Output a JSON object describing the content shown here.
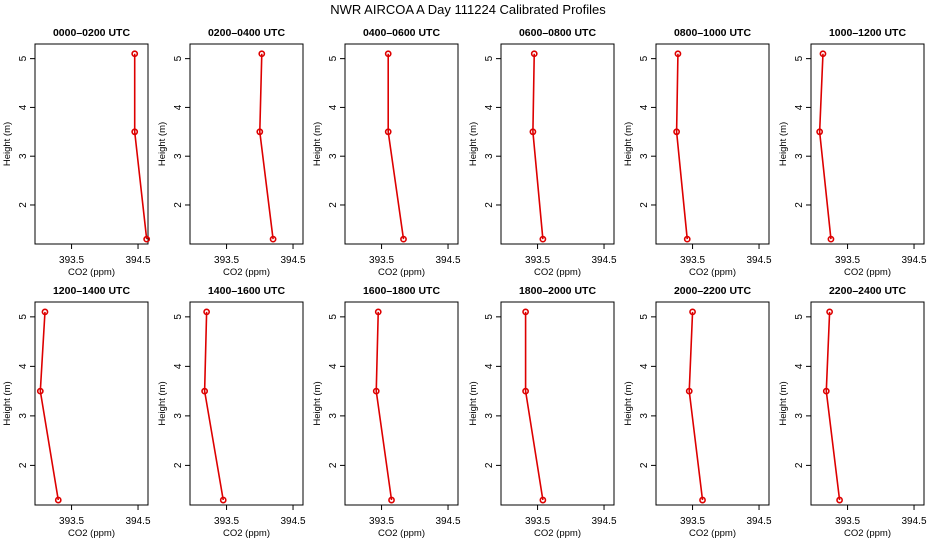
{
  "figure": {
    "title": "NWR AIRCOA A  Day 111224  Calibrated Profiles"
  },
  "chart_data": [
    {
      "type": "line",
      "title": "0000–0200 UTC",
      "xlabel": "CO2 (ppm)",
      "ylabel": "Height (m)",
      "xlim": [
        392.95,
        394.65
      ],
      "ylim": [
        1.2,
        5.3
      ],
      "xticks": [
        393.5,
        394.5
      ],
      "xtick_labels": [
        "393.5",
        "394.5"
      ],
      "yticks": [
        2,
        3,
        4,
        5
      ],
      "ytick_labels": [
        "2",
        "3",
        "4",
        "5"
      ],
      "series": [
        {
          "x": [
            394.45,
            394.45,
            394.63
          ],
          "y": [
            5.1,
            3.5,
            1.3
          ]
        }
      ]
    },
    {
      "type": "line",
      "title": "0200–0400 UTC",
      "xlabel": "CO2 (ppm)",
      "ylabel": "Height (m)",
      "xlim": [
        392.95,
        394.65
      ],
      "ylim": [
        1.2,
        5.3
      ],
      "xticks": [
        393.5,
        394.5
      ],
      "xtick_labels": [
        "393.5",
        "394.5"
      ],
      "yticks": [
        2,
        3,
        4,
        5
      ],
      "ytick_labels": [
        "2",
        "3",
        "4",
        "5"
      ],
      "series": [
        {
          "x": [
            394.03,
            394.0,
            394.2
          ],
          "y": [
            5.1,
            3.5,
            1.3
          ]
        }
      ]
    },
    {
      "type": "line",
      "title": "0400–0600 UTC",
      "xlabel": "CO2 (ppm)",
      "ylabel": "Height (m)",
      "xlim": [
        392.95,
        394.65
      ],
      "ylim": [
        1.2,
        5.3
      ],
      "xticks": [
        393.5,
        394.5
      ],
      "xtick_labels": [
        "393.5",
        "394.5"
      ],
      "yticks": [
        2,
        3,
        4,
        5
      ],
      "ytick_labels": [
        "2",
        "3",
        "4",
        "5"
      ],
      "series": [
        {
          "x": [
            393.6,
            393.6,
            393.83
          ],
          "y": [
            5.1,
            3.5,
            1.3
          ]
        }
      ]
    },
    {
      "type": "line",
      "title": "0600–0800 UTC",
      "xlabel": "CO2 (ppm)",
      "ylabel": "Height (m)",
      "xlim": [
        392.95,
        394.65
      ],
      "ylim": [
        1.2,
        5.3
      ],
      "xticks": [
        393.5,
        394.5
      ],
      "xtick_labels": [
        "393.5",
        "394.5"
      ],
      "yticks": [
        2,
        3,
        4,
        5
      ],
      "ytick_labels": [
        "2",
        "3",
        "4",
        "5"
      ],
      "series": [
        {
          "x": [
            393.45,
            393.43,
            393.58
          ],
          "y": [
            5.1,
            3.5,
            1.3
          ]
        }
      ]
    },
    {
      "type": "line",
      "title": "0800–1000 UTC",
      "xlabel": "CO2 (ppm)",
      "ylabel": "Height (m)",
      "xlim": [
        392.95,
        394.65
      ],
      "ylim": [
        1.2,
        5.3
      ],
      "xticks": [
        393.5,
        394.5
      ],
      "xtick_labels": [
        "393.5",
        "394.5"
      ],
      "yticks": [
        2,
        3,
        4,
        5
      ],
      "ytick_labels": [
        "2",
        "3",
        "4",
        "5"
      ],
      "series": [
        {
          "x": [
            393.28,
            393.26,
            393.42
          ],
          "y": [
            5.1,
            3.5,
            1.3
          ]
        }
      ]
    },
    {
      "type": "line",
      "title": "1000–1200 UTC",
      "xlabel": "CO2 (ppm)",
      "ylabel": "Height (m)",
      "xlim": [
        392.95,
        394.65
      ],
      "ylim": [
        1.2,
        5.3
      ],
      "xticks": [
        393.5,
        394.5
      ],
      "xtick_labels": [
        "393.5",
        "394.5"
      ],
      "yticks": [
        2,
        3,
        4,
        5
      ],
      "ytick_labels": [
        "2",
        "3",
        "4",
        "5"
      ],
      "series": [
        {
          "x": [
            393.13,
            393.08,
            393.25
          ],
          "y": [
            5.1,
            3.5,
            1.3
          ]
        }
      ]
    },
    {
      "type": "line",
      "title": "1200–1400 UTC",
      "xlabel": "CO2 (ppm)",
      "ylabel": "Height (m)",
      "xlim": [
        392.95,
        394.65
      ],
      "ylim": [
        1.2,
        5.3
      ],
      "xticks": [
        393.5,
        394.5
      ],
      "xtick_labels": [
        "393.5",
        "394.5"
      ],
      "yticks": [
        2,
        3,
        4,
        5
      ],
      "ytick_labels": [
        "2",
        "3",
        "4",
        "5"
      ],
      "series": [
        {
          "x": [
            393.1,
            393.03,
            393.3
          ],
          "y": [
            5.1,
            3.5,
            1.3
          ]
        }
      ]
    },
    {
      "type": "line",
      "title": "1400–1600 UTC",
      "xlabel": "CO2 (ppm)",
      "ylabel": "Height (m)",
      "xlim": [
        392.95,
        394.65
      ],
      "ylim": [
        1.2,
        5.3
      ],
      "xticks": [
        393.5,
        394.5
      ],
      "xtick_labels": [
        "393.5",
        "394.5"
      ],
      "yticks": [
        2,
        3,
        4,
        5
      ],
      "ytick_labels": [
        "2",
        "3",
        "4",
        "5"
      ],
      "series": [
        {
          "x": [
            393.2,
            393.17,
            393.45
          ],
          "y": [
            5.1,
            3.5,
            1.3
          ]
        }
      ]
    },
    {
      "type": "line",
      "title": "1600–1800 UTC",
      "xlabel": "CO2 (ppm)",
      "ylabel": "Height (m)",
      "xlim": [
        392.95,
        394.65
      ],
      "ylim": [
        1.2,
        5.3
      ],
      "xticks": [
        393.5,
        394.5
      ],
      "xtick_labels": [
        "393.5",
        "394.5"
      ],
      "yticks": [
        2,
        3,
        4,
        5
      ],
      "ytick_labels": [
        "2",
        "3",
        "4",
        "5"
      ],
      "series": [
        {
          "x": [
            393.45,
            393.42,
            393.65
          ],
          "y": [
            5.1,
            3.5,
            1.3
          ]
        }
      ]
    },
    {
      "type": "line",
      "title": "1800–2000 UTC",
      "xlabel": "CO2 (ppm)",
      "ylabel": "Height (m)",
      "xlim": [
        392.95,
        394.65
      ],
      "ylim": [
        1.2,
        5.3
      ],
      "xticks": [
        393.5,
        394.5
      ],
      "xtick_labels": [
        "393.5",
        "394.5"
      ],
      "yticks": [
        2,
        3,
        4,
        5
      ],
      "ytick_labels": [
        "2",
        "3",
        "4",
        "5"
      ],
      "series": [
        {
          "x": [
            393.32,
            393.32,
            393.58
          ],
          "y": [
            5.1,
            3.5,
            1.3
          ]
        }
      ]
    },
    {
      "type": "line",
      "title": "2000–2200 UTC",
      "xlabel": "CO2 (ppm)",
      "ylabel": "Height (m)",
      "xlim": [
        392.95,
        394.65
      ],
      "ylim": [
        1.2,
        5.3
      ],
      "xticks": [
        393.5,
        394.5
      ],
      "xtick_labels": [
        "393.5",
        "394.5"
      ],
      "yticks": [
        2,
        3,
        4,
        5
      ],
      "ytick_labels": [
        "2",
        "3",
        "4",
        "5"
      ],
      "series": [
        {
          "x": [
            393.5,
            393.45,
            393.65
          ],
          "y": [
            5.1,
            3.5,
            1.3
          ]
        }
      ]
    },
    {
      "type": "line",
      "title": "2200–2400 UTC",
      "xlabel": "CO2 (ppm)",
      "ylabel": "Height (m)",
      "xlim": [
        392.95,
        394.65
      ],
      "ylim": [
        1.2,
        5.3
      ],
      "xticks": [
        393.5,
        394.5
      ],
      "xtick_labels": [
        "393.5",
        "394.5"
      ],
      "yticks": [
        2,
        3,
        4,
        5
      ],
      "ytick_labels": [
        "2",
        "3",
        "4",
        "5"
      ],
      "series": [
        {
          "x": [
            393.23,
            393.18,
            393.38
          ],
          "y": [
            5.1,
            3.5,
            1.3
          ]
        }
      ]
    }
  ],
  "style": {
    "line_color": "#dd0000",
    "marker_color": "#dd0000",
    "axis_color": "#000000"
  }
}
